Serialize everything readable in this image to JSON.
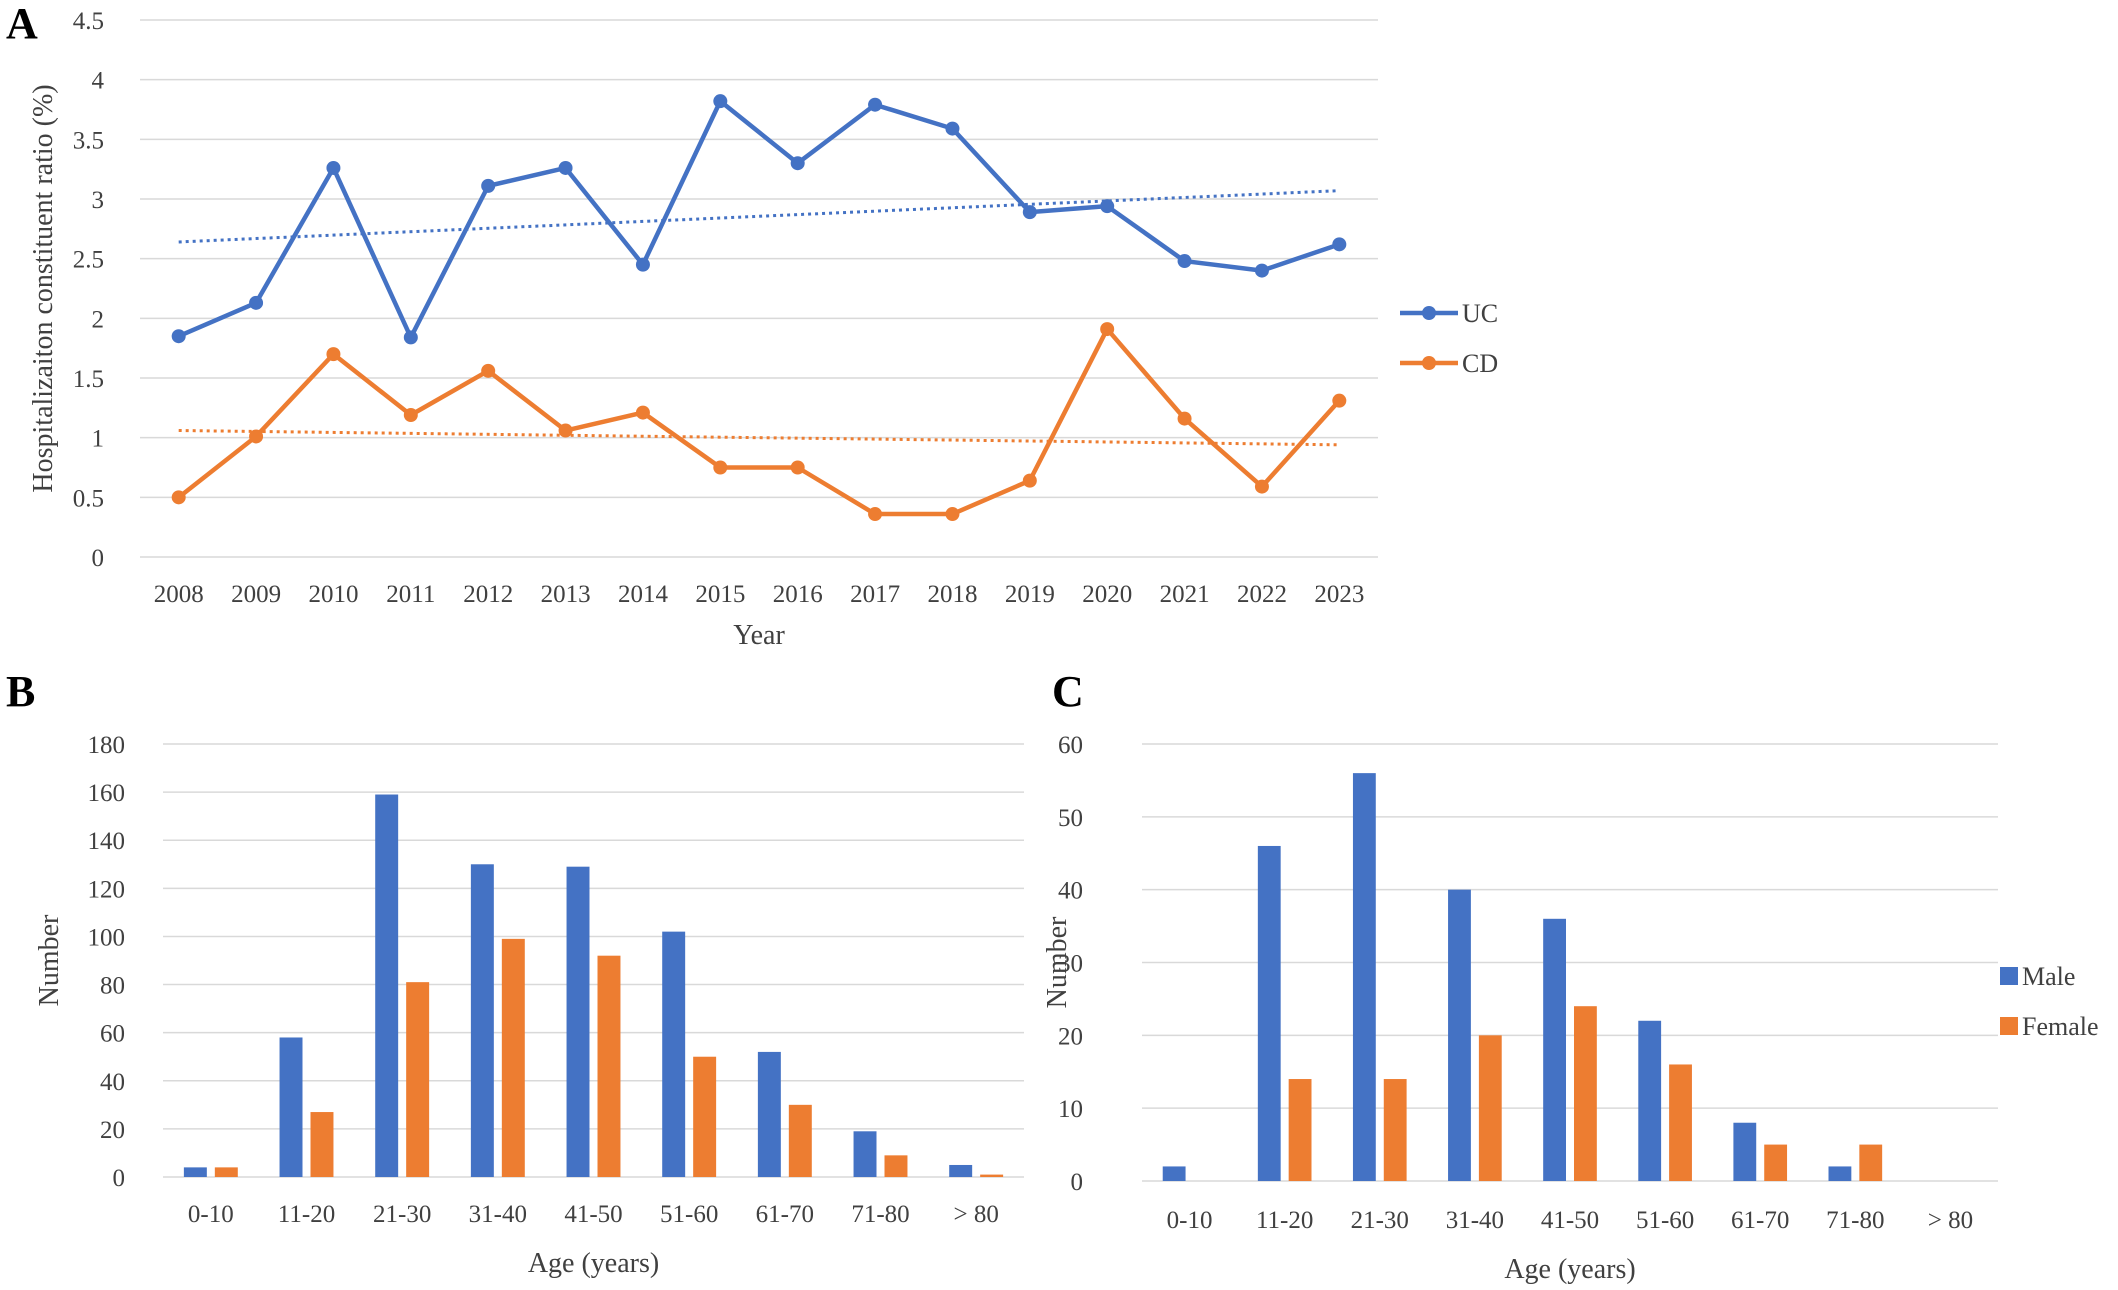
{
  "colors": {
    "series1": "#4472c4",
    "series2": "#ed7d31",
    "grid": "#d9d9d9"
  },
  "chart_data": [
    {
      "panel": "A",
      "type": "line",
      "xlabel": "Year",
      "ylabel": "Hospitalizaiton constituent ratio (%)",
      "ylim": [
        0,
        4.5
      ],
      "yticks": [
        "0",
        "0.5",
        "1",
        "1.5",
        "2",
        "2.5",
        "3",
        "3.5",
        "4",
        "4.5"
      ],
      "categories": [
        "2008",
        "2009",
        "2010",
        "2011",
        "2012",
        "2013",
        "2014",
        "2015",
        "2016",
        "2017",
        "2018",
        "2019",
        "2020",
        "2021",
        "2022",
        "2023"
      ],
      "series": [
        {
          "name": "UC",
          "values": [
            1.85,
            2.13,
            3.26,
            1.84,
            3.11,
            3.26,
            2.45,
            3.82,
            3.3,
            3.79,
            3.59,
            2.89,
            2.94,
            2.48,
            2.4,
            2.62
          ],
          "trendline": [
            2.64,
            3.07
          ]
        },
        {
          "name": "CD",
          "values": [
            0.5,
            1.01,
            1.7,
            1.19,
            1.56,
            1.06,
            1.21,
            0.75,
            0.75,
            0.36,
            0.36,
            0.64,
            1.91,
            1.16,
            0.59,
            1.31
          ],
          "trendline": [
            1.06,
            0.94
          ]
        }
      ],
      "legend": "right",
      "grid": true
    },
    {
      "panel": "B",
      "type": "bar",
      "xlabel": "Age (years)",
      "ylabel": "Number",
      "ylim": [
        0,
        180
      ],
      "yticks": [
        "0",
        "20",
        "40",
        "60",
        "80",
        "100",
        "120",
        "140",
        "160",
        "180"
      ],
      "categories": [
        "0-10",
        "11-20",
        "21-30",
        "31-40",
        "41-50",
        "51-60",
        "61-70",
        "71-80",
        "> 80"
      ],
      "series": [
        {
          "values": [
            4,
            58,
            159,
            130,
            129,
            102,
            52,
            19,
            5
          ]
        },
        {
          "values": [
            4,
            27,
            81,
            99,
            92,
            50,
            30,
            9,
            1
          ]
        }
      ],
      "grid": true
    },
    {
      "panel": "C",
      "type": "bar",
      "xlabel": "Age (years)",
      "ylabel": "Number",
      "ylim": [
        0,
        60
      ],
      "yticks": [
        "0",
        "10",
        "20",
        "30",
        "40",
        "50",
        "60"
      ],
      "categories": [
        "0-10",
        "11-20",
        "21-30",
        "31-40",
        "41-50",
        "51-60",
        "61-70",
        "71-80",
        "> 80"
      ],
      "series": [
        {
          "name": "Male",
          "values": [
            2,
            46,
            56,
            40,
            36,
            22,
            8,
            2,
            0
          ]
        },
        {
          "name": "Female",
          "values": [
            0,
            14,
            14,
            20,
            24,
            16,
            5,
            5,
            0
          ]
        }
      ],
      "legend": "right",
      "grid": true
    }
  ]
}
